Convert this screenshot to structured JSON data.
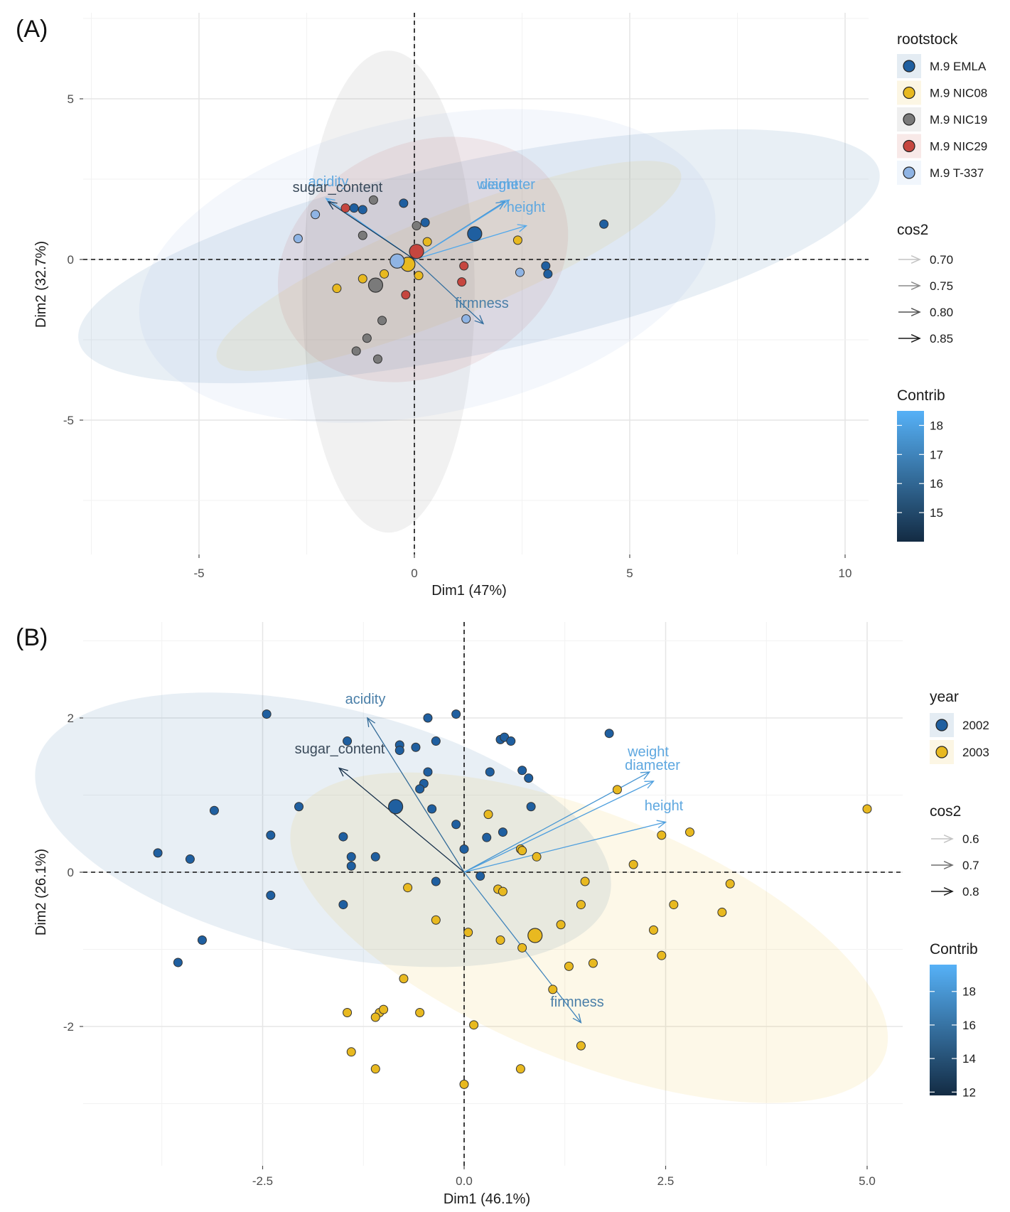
{
  "colors": {
    "M.9 EMLA": "#1f5fa0",
    "M.9 NIC08": "#e8b920",
    "M.9 NIC19": "#7a7a7a",
    "M.9 NIC29": "#c6463f",
    "M.9 T-337": "#8fb4e4",
    "2002": "#1f5fa0",
    "2003": "#e8b920"
  },
  "chart_data": [
    {
      "panel": "(A)",
      "type": "scatter",
      "subtype": "pca_biplot",
      "xlabel": "Dim1 (47%)",
      "ylabel": "Dim2 (32.7%)",
      "xlim": [
        -7.5,
        10.5
      ],
      "ylim": [
        -9,
        7.5
      ],
      "xticks": [
        -5,
        0,
        5,
        10
      ],
      "xtick_labels": [
        "-5",
        "0",
        "5",
        "10"
      ],
      "yticks": [
        -5,
        0,
        5
      ],
      "ytick_labels": [
        "-5",
        "0",
        "5"
      ],
      "grid": true,
      "legend": {
        "title": "rootstock",
        "items": [
          "M.9 EMLA",
          "M.9 NIC08",
          "M.9 NIC19",
          "M.9 NIC29",
          "M.9 T-337"
        ],
        "cos2_title": "cos2",
        "cos2_items": [
          "0.70",
          "0.75",
          "0.80",
          "0.85"
        ],
        "contrib_title": "Contrib",
        "contrib_ticks": [
          "18",
          "17",
          "16",
          "15"
        ],
        "contrib_range": [
          14,
          18.5
        ],
        "contrib_tick_values": [
          18,
          17,
          16,
          15
        ]
      },
      "series": [
        {
          "name": "M.9 EMLA",
          "points": [
            [
              -1.4,
              1.6
            ],
            [
              -1.2,
              1.55
            ],
            [
              -0.25,
              1.75
            ],
            [
              0.25,
              1.15
            ],
            [
              3.05,
              -0.2
            ],
            [
              3.1,
              -0.45
            ],
            [
              4.4,
              1.1
            ]
          ],
          "centroid": [
            1.4,
            0.8
          ],
          "ellipse": {
            "cx": 1.5,
            "cy": 0.1,
            "rx": 9.5,
            "ry": 3.0,
            "angle": -12
          }
        },
        {
          "name": "M.9 NIC08",
          "points": [
            [
              -1.8,
              -0.9
            ],
            [
              -1.2,
              -0.6
            ],
            [
              -0.7,
              -0.45
            ],
            [
              0.3,
              0.55
            ],
            [
              2.4,
              0.6
            ],
            [
              0.1,
              -0.5
            ]
          ],
          "centroid": [
            -0.15,
            -0.15
          ],
          "ellipse": {
            "cx": 0.8,
            "cy": -0.2,
            "rx": 5.8,
            "ry": 1.6,
            "angle": -22
          }
        },
        {
          "name": "M.9 NIC19",
          "points": [
            [
              -0.95,
              1.85
            ],
            [
              -1.2,
              0.75
            ],
            [
              0.05,
              1.05
            ],
            [
              -0.75,
              -1.9
            ],
            [
              -1.1,
              -2.45
            ],
            [
              -1.35,
              -2.85
            ],
            [
              -0.85,
              -3.1
            ]
          ],
          "centroid": [
            -0.9,
            -0.8
          ],
          "ellipse": {
            "cx": -0.6,
            "cy": -1.0,
            "rx": 2.0,
            "ry": 7.5,
            "angle": 0
          }
        },
        {
          "name": "M.9 NIC29",
          "points": [
            [
              -1.6,
              1.6
            ],
            [
              1.15,
              -0.2
            ],
            [
              1.1,
              -0.7
            ],
            [
              -0.2,
              -1.1
            ]
          ],
          "centroid": [
            0.05,
            0.25
          ],
          "ellipse": {
            "cx": 0.2,
            "cy": 0.0,
            "rx": 3.5,
            "ry": 3.6,
            "angle": -25
          }
        },
        {
          "name": "M.9 T-337",
          "points": [
            [
              -2.7,
              0.65
            ],
            [
              -2.3,
              1.4
            ],
            [
              1.2,
              -1.85
            ],
            [
              2.45,
              -0.4
            ]
          ],
          "centroid": [
            -0.4,
            -0.05
          ],
          "ellipse": {
            "cx": 0.3,
            "cy": -0.2,
            "rx": 6.8,
            "ry": 4.6,
            "angle": -12
          }
        }
      ],
      "variables": [
        {
          "name": "acidity",
          "x": -2.05,
          "y": 1.9,
          "contrib": 18.2,
          "cos2": 0.72
        },
        {
          "name": "sugar_content",
          "x": -2.0,
          "y": 1.8,
          "contrib": 14.5,
          "cos2": 0.86
        },
        {
          "name": "weight",
          "x": 2.1,
          "y": 1.8,
          "contrib": 17.5,
          "cos2": 0.8
        },
        {
          "name": "diameter",
          "x": 2.2,
          "y": 1.85,
          "contrib": 18.2,
          "cos2": 0.8
        },
        {
          "name": "height",
          "x": 2.6,
          "y": 1.05,
          "contrib": 18.2,
          "cos2": 0.75
        },
        {
          "name": "firmness",
          "x": 1.6,
          "y": -2.0,
          "contrib": 16.3,
          "cos2": 0.7
        }
      ],
      "variable_labels": [
        {
          "name": "acidity",
          "text": "acidity"
        },
        {
          "name": "sugar_content",
          "text": "sugar_content"
        },
        {
          "name": "weight",
          "text": "weight"
        },
        {
          "name": "diameter",
          "text": "diameter"
        },
        {
          "name": "height",
          "text": "height"
        },
        {
          "name": "firmness",
          "text": "firmness"
        }
      ]
    },
    {
      "panel": "(B)",
      "type": "scatter",
      "subtype": "pca_biplot",
      "xlabel": "Dim1 (46.1%)",
      "ylabel": "Dim2 (26.1%)",
      "xlim": [
        -4.3,
        5.4
      ],
      "ylim": [
        -3.6,
        3.35
      ],
      "xticks": [
        -2.5,
        0,
        2.5,
        5
      ],
      "xtick_labels": [
        "-2.5",
        "0.0",
        "2.5",
        "5.0"
      ],
      "yticks": [
        -2,
        0,
        2
      ],
      "ytick_labels": [
        "-2",
        "0",
        "2"
      ],
      "grid": true,
      "legend": {
        "title": "year",
        "items": [
          "2002",
          "2003"
        ],
        "cos2_title": "cos2",
        "cos2_items": [
          "0.6",
          "0.7",
          "0.8"
        ],
        "contrib_title": "Contrib",
        "contrib_ticks": [
          "18",
          "16",
          "14",
          "12"
        ],
        "contrib_range": [
          11.8,
          19.6
        ],
        "contrib_tick_values": [
          18,
          16,
          14,
          12
        ]
      },
      "series": [
        {
          "name": "2002",
          "points": [
            [
              -2.45,
              2.05
            ],
            [
              -0.45,
              2.0
            ],
            [
              -0.1,
              2.05
            ],
            [
              -1.45,
              1.7
            ],
            [
              -0.8,
              1.65
            ],
            [
              -0.6,
              1.62
            ],
            [
              -0.35,
              1.7
            ],
            [
              -0.8,
              1.58
            ],
            [
              0.45,
              1.72
            ],
            [
              0.5,
              1.75
            ],
            [
              0.58,
              1.7
            ],
            [
              1.8,
              1.8
            ],
            [
              -0.45,
              1.3
            ],
            [
              0.32,
              1.3
            ],
            [
              0.72,
              1.32
            ],
            [
              0.8,
              1.22
            ],
            [
              -0.5,
              1.15
            ],
            [
              -0.55,
              1.08
            ],
            [
              -2.05,
              0.85
            ],
            [
              -3.1,
              0.8
            ],
            [
              -0.4,
              0.82
            ],
            [
              0.83,
              0.85
            ],
            [
              -2.4,
              0.48
            ],
            [
              -1.5,
              0.46
            ],
            [
              -3.8,
              0.25
            ],
            [
              -3.4,
              0.17
            ],
            [
              -1.4,
              0.2
            ],
            [
              -1.1,
              0.2
            ],
            [
              -1.4,
              0.08
            ],
            [
              -0.1,
              0.62
            ],
            [
              0.0,
              0.3
            ],
            [
              0.28,
              0.45
            ],
            [
              0.48,
              0.52
            ],
            [
              0.2,
              -0.05
            ],
            [
              -0.35,
              -0.12
            ],
            [
              -2.4,
              -0.3
            ],
            [
              -1.5,
              -0.42
            ],
            [
              -3.25,
              -0.88
            ],
            [
              -3.55,
              -1.17
            ]
          ],
          "centroid": [
            -0.85,
            0.85
          ],
          "ellipse": {
            "cx": -1.75,
            "cy": 0.55,
            "rx": 3.65,
            "ry": 1.6,
            "angle": 13
          }
        },
        {
          "name": "2003",
          "points": [
            [
              5.0,
              0.82
            ],
            [
              1.9,
              1.07
            ],
            [
              2.45,
              0.48
            ],
            [
              2.8,
              0.52
            ],
            [
              2.1,
              0.1
            ],
            [
              0.7,
              0.3
            ],
            [
              0.9,
              0.2
            ],
            [
              0.72,
              0.28
            ],
            [
              0.3,
              0.75
            ],
            [
              -0.7,
              -0.2
            ],
            [
              0.42,
              -0.22
            ],
            [
              0.48,
              -0.25
            ],
            [
              1.5,
              -0.12
            ],
            [
              3.3,
              -0.15
            ],
            [
              2.6,
              -0.42
            ],
            [
              1.45,
              -0.42
            ],
            [
              3.2,
              -0.52
            ],
            [
              1.2,
              -0.68
            ],
            [
              -0.35,
              -0.62
            ],
            [
              2.35,
              -0.75
            ],
            [
              0.05,
              -0.78
            ],
            [
              0.45,
              -0.88
            ],
            [
              0.72,
              -0.98
            ],
            [
              2.45,
              -1.08
            ],
            [
              1.3,
              -1.22
            ],
            [
              1.6,
              -1.18
            ],
            [
              -0.75,
              -1.38
            ],
            [
              1.1,
              -1.52
            ],
            [
              -1.45,
              -1.82
            ],
            [
              -1.05,
              -1.82
            ],
            [
              -1.1,
              -1.88
            ],
            [
              -1.0,
              -1.78
            ],
            [
              -0.55,
              -1.82
            ],
            [
              0.12,
              -1.98
            ],
            [
              -1.4,
              -2.33
            ],
            [
              -1.1,
              -2.55
            ],
            [
              0.7,
              -2.55
            ],
            [
              1.45,
              -2.25
            ],
            [
              0.0,
              -2.75
            ]
          ],
          "centroid": [
            0.88,
            -0.82
          ],
          "ellipse": {
            "cx": 1.55,
            "cy": -0.85,
            "rx": 3.95,
            "ry": 1.6,
            "angle": 22
          }
        }
      ],
      "variables": [
        {
          "name": "acidity",
          "x": -1.2,
          "y": 2.0,
          "contrib": 15.5,
          "cos2": 0.8
        },
        {
          "name": "sugar_content",
          "x": -1.55,
          "y": 1.35,
          "contrib": 12.0,
          "cos2": 0.6
        },
        {
          "name": "weight",
          "x": 2.3,
          "y": 1.3,
          "contrib": 18.0,
          "cos2": 0.75
        },
        {
          "name": "diameter",
          "x": 2.35,
          "y": 1.18,
          "contrib": 18.5,
          "cos2": 0.77
        },
        {
          "name": "height",
          "x": 2.5,
          "y": 0.65,
          "contrib": 18.5,
          "cos2": 0.72
        },
        {
          "name": "firmness",
          "x": 1.45,
          "y": -1.95,
          "contrib": 17.0,
          "cos2": 0.75
        }
      ],
      "variable_labels": [
        {
          "name": "acidity",
          "text": "acidity"
        },
        {
          "name": "sugar_content",
          "text": "sugar_content"
        },
        {
          "name": "weight",
          "text": "weight"
        },
        {
          "name": "diameter",
          "text": "diameter"
        },
        {
          "name": "height",
          "text": "height"
        },
        {
          "name": "firmness",
          "text": "firmness"
        }
      ]
    }
  ]
}
